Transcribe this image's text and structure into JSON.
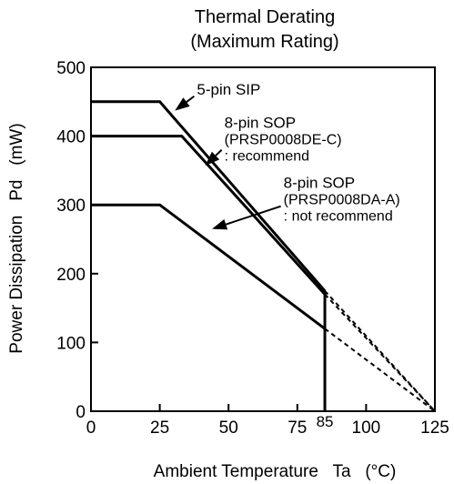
{
  "chart_data": {
    "type": "line",
    "title": "Thermal Derating",
    "subtitle": "(Maximum Rating)",
    "xlabel": "Ambient Temperature   Ta   (°C)",
    "ylabel": "Power Dissipation   Pd   (mW)",
    "xlim": [
      0,
      125
    ],
    "ylim": [
      0,
      500
    ],
    "x_ticks": [
      "0",
      "25",
      "50",
      "75",
      "100",
      "125"
    ],
    "x_ticks_values": [
      0,
      25,
      50,
      75,
      100,
      125
    ],
    "extra_tick": {
      "label": "85",
      "value": 85
    },
    "y_ticks": [
      "0",
      "100",
      "200",
      "300",
      "400",
      "500"
    ],
    "y_ticks_values": [
      0,
      100,
      200,
      300,
      400,
      500
    ],
    "grid": false,
    "series": [
      {
        "points": [
          [
            0,
            450
          ],
          [
            25,
            450
          ],
          [
            85,
            175
          ]
        ],
        "dashed_to": [
          125,
          0
        ],
        "label_lines": [
          "5-pin SIP"
        ],
        "label_at": [
          38.5,
          460
        ],
        "arrow_from": [
          37.5,
          458
        ],
        "arrow_to": [
          30.5,
          437
        ]
      },
      {
        "points": [
          [
            0,
            400
          ],
          [
            33,
            400
          ],
          [
            85,
            170
          ]
        ],
        "dashed_to": [
          125,
          0
        ],
        "label_lines": [
          "8-pin SOP",
          "(PRSP0008DE-C)",
          ": recommend"
        ],
        "label_at": [
          48.5,
          412
        ],
        "arrow_from": [
          47.5,
          380
        ],
        "arrow_to": [
          41.5,
          357
        ]
      },
      {
        "points": [
          [
            0,
            300
          ],
          [
            25,
            300
          ],
          [
            85,
            120
          ]
        ],
        "dashed_to": [
          125,
          0
        ],
        "label_lines": [
          "8-pin SOP",
          "(PRSP0008DA-A)",
          ": not recommend"
        ],
        "label_at": [
          70,
          325
        ],
        "arrow_from": [
          69,
          298
        ],
        "arrow_to": [
          44,
          265
        ]
      }
    ],
    "vertical_line": {
      "x": 85,
      "y_from": 0,
      "y_to": 175
    }
  }
}
